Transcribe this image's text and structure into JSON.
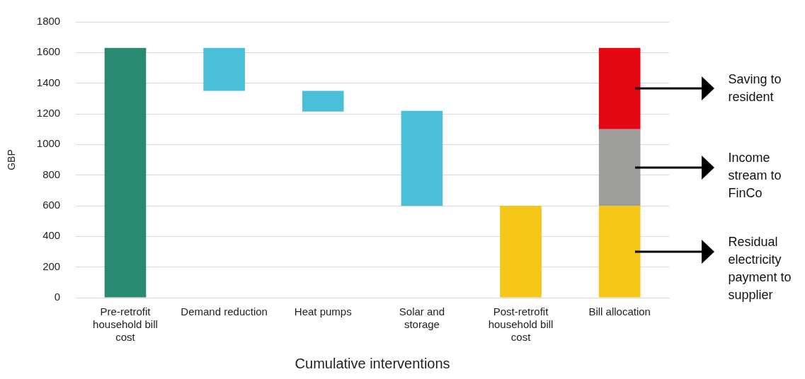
{
  "chart_data": {
    "type": "bar",
    "xlabel": "Cumulative interventions",
    "ylabel": "GBP",
    "categories": [
      "Pre-retrofit household bill cost",
      "Demand reduction",
      "Heat pumps",
      "Solar and storage",
      "Post-retrofit household bill cost",
      "Bill allocation"
    ],
    "stacked": true,
    "series": [
      {
        "colors": [
          "#2b8a72",
          "#4cbfd8",
          "#4cbfd8",
          "#4cbfd8",
          "#f5c518",
          "#f5c518"
        ],
        "values": [
          1630,
          280,
          135,
          620,
          600,
          600
        ],
        "base": [
          0,
          1350,
          1215,
          600,
          0,
          0
        ]
      },
      {
        "color": "#9d9d9b",
        "values": [
          null,
          null,
          null,
          null,
          null,
          500
        ]
      },
      {
        "color": "#e30613",
        "values": [
          null,
          null,
          null,
          null,
          null,
          530
        ]
      }
    ],
    "ylim": [
      0,
      1800
    ],
    "yticks": [
      0,
      200,
      400,
      600,
      800,
      1000,
      1200,
      1400,
      1600,
      1800
    ],
    "grid": "y",
    "legend": false,
    "annotations": [
      "Saving to resident",
      "Income stream to FinCo",
      "Residual electricity payment to supplier"
    ]
  }
}
